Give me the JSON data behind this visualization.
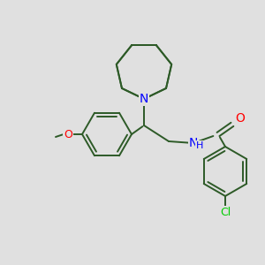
{
  "background_color": "#e0e0e0",
  "line_color": "#2d5a27",
  "atom_colors": {
    "N": "#0000ff",
    "O": "#ff0000",
    "Cl": "#00cc00",
    "H": "#000080"
  },
  "figsize": [
    3.0,
    3.0
  ],
  "dpi": 100
}
